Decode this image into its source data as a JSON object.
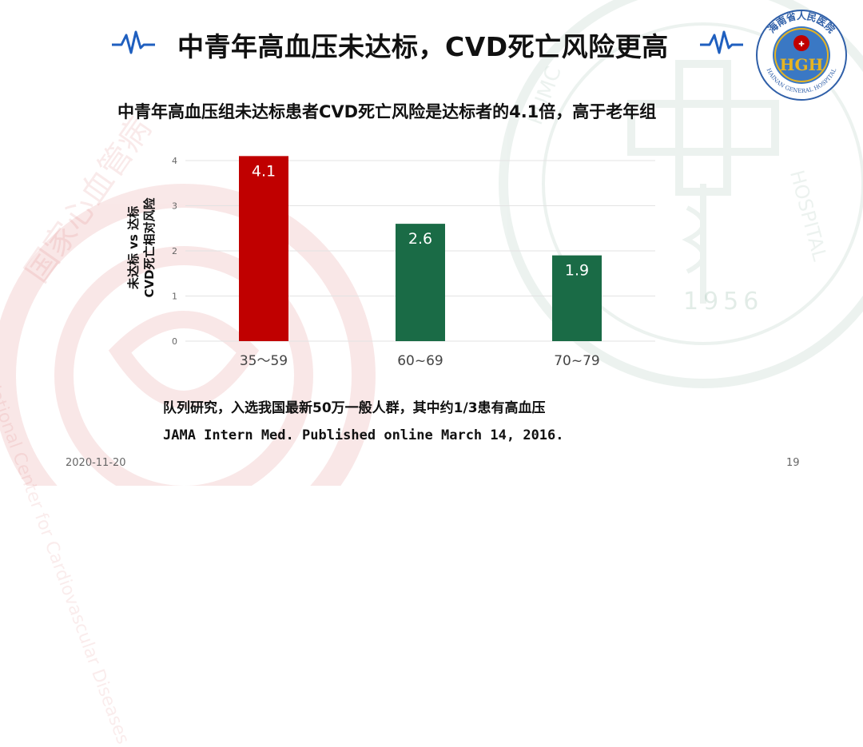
{
  "slide": {
    "title": "中青年高血压未达标，CVD死亡风险更高",
    "subtitle": "中青年高血压组未达标患者CVD死亡风险是达标者的4.1倍，高于老年组",
    "note_study": "队列研究，入选我国最新50万一般人群，其中约1/3患有高血压",
    "note_citation": "JAMA Intern Med. Published online March 14, 2016.",
    "date": "2020-11-20",
    "page_number": "19",
    "logo_text": "海南省人民医院",
    "logo_text_en": "HAINAN GENERAL HOSPITAL",
    "logo_initials": "HGH",
    "watermark_year": "1956",
    "watermark_text_red": "国家心血管病",
    "watermark_text_red_en": "National Center for Cardiovascular Diseases",
    "watermark_text_green": "PUMC",
    "watermark_text_green_en": "HOSPITAL"
  },
  "colors": {
    "accent_red": "#c00000",
    "accent_green": "#1a6b46",
    "pulse_blue": "#1f5fbf",
    "axis_text": "#666666",
    "grid": "#e3e3e3"
  },
  "icons": {
    "title_decoration": "heartbeat-pulse-icon",
    "logo": "hospital-logo-icon"
  },
  "chart_data": {
    "type": "bar",
    "categories": [
      "35～59",
      "60~69",
      "70~79"
    ],
    "values": [
      4.1,
      2.6,
      1.9
    ],
    "data_labels": [
      "4.1",
      "2.6",
      "1.9"
    ],
    "bar_colors": [
      "#c00000",
      "#1a6b46",
      "#1a6b46"
    ],
    "ylabel_line1": "未达标 vs 达标",
    "ylabel_line2": "CVD死亡相对风险",
    "xlabel": "",
    "ylim": [
      0,
      4
    ],
    "yticks": [
      0,
      1,
      2,
      3,
      4
    ],
    "grid": true,
    "legend": "none"
  }
}
